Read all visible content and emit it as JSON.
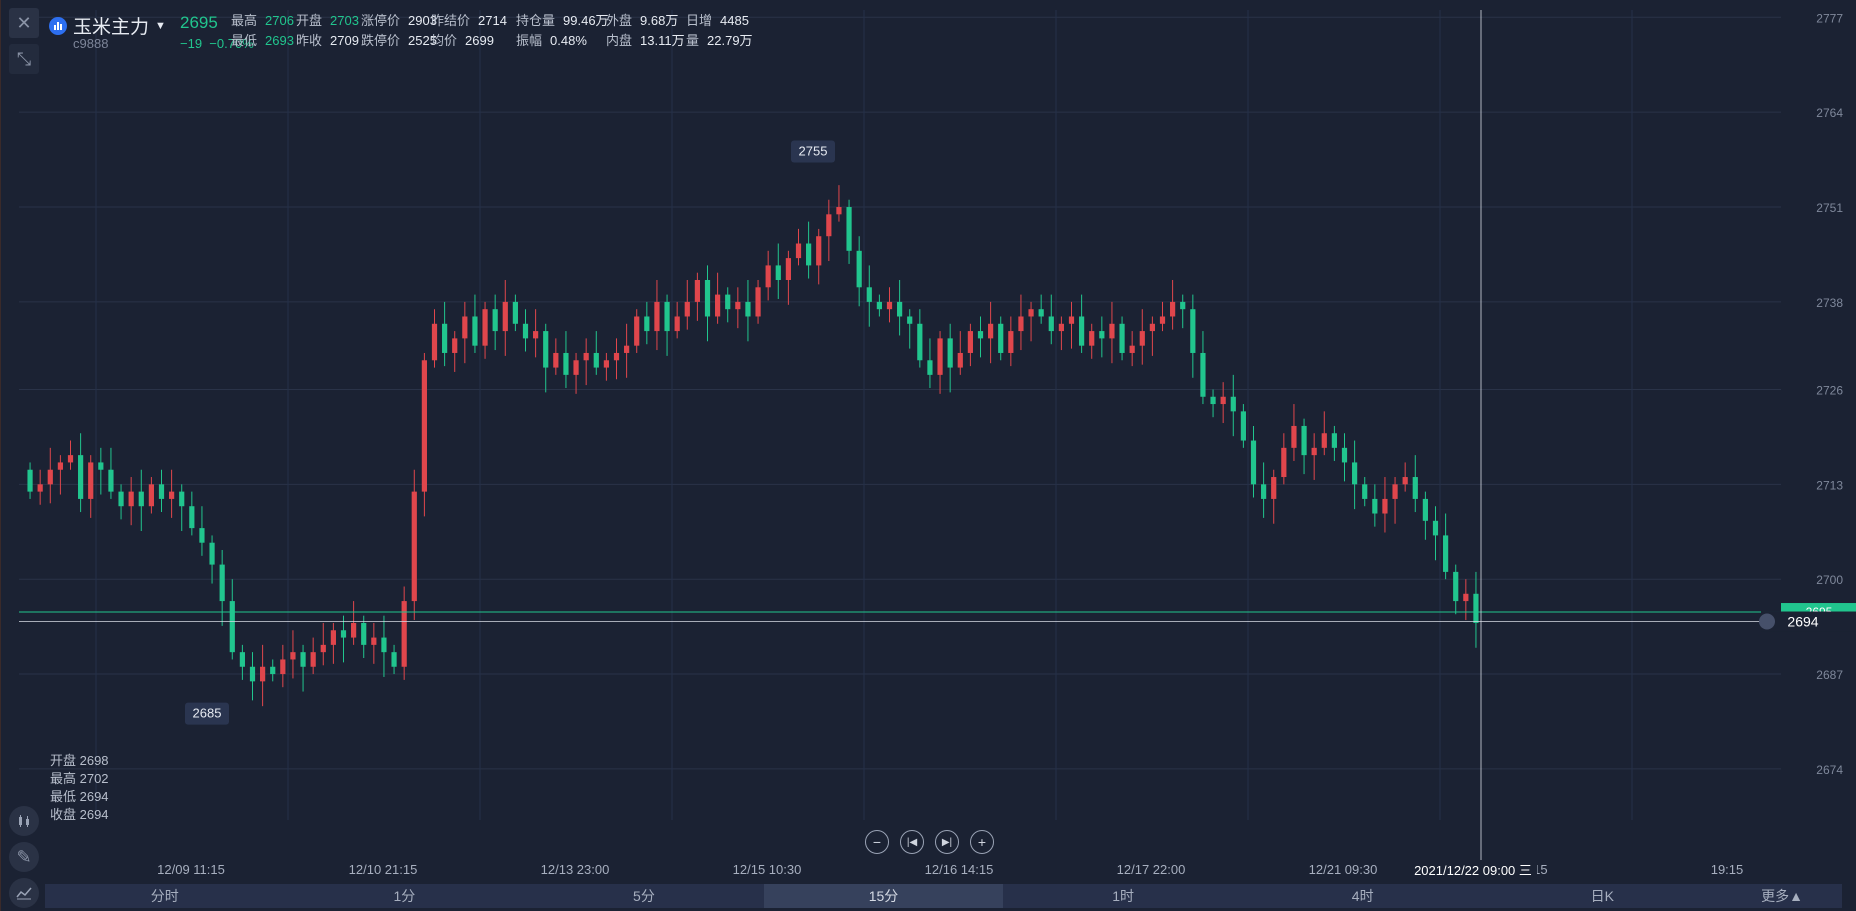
{
  "header": {
    "name": "玉米主力",
    "code": "c9888",
    "price": "2695",
    "change": "−19",
    "change_pct": "−0.70%",
    "row1": [
      {
        "k": "最高",
        "v": "2706",
        "green": true
      },
      {
        "k": "开盘",
        "v": "2703",
        "green": true
      },
      {
        "k": "涨停价",
        "v": "2903"
      },
      {
        "k": "昨结价",
        "v": "2714"
      },
      {
        "k": "持仓量",
        "v": "99.46万"
      },
      {
        "k": "外盘",
        "v": "9.68万"
      },
      {
        "k": "日增",
        "v": "4485"
      }
    ],
    "row2": [
      {
        "k": "最低",
        "v": "2693",
        "green": true
      },
      {
        "k": "昨收",
        "v": "2709"
      },
      {
        "k": "跌停价",
        "v": "2525"
      },
      {
        "k": "均价",
        "v": "2699"
      },
      {
        "k": "振幅",
        "v": "0.48%"
      },
      {
        "k": "内盘",
        "v": "13.11万"
      },
      {
        "k": "量",
        "v": "22.79万"
      }
    ]
  },
  "chart_data": {
    "type": "candlestick",
    "ylim": [
      2667,
      2778
    ],
    "y_ticks": [
      "2777",
      "2764",
      "2751",
      "2738",
      "2726",
      "2713",
      "2700",
      "2687",
      "2674"
    ],
    "x_ticks": [
      "12/09 11:15",
      "12/10 21:15",
      "12/13 23:00",
      "12/15 10:30",
      "12/16 14:15",
      "12/17 22:00",
      "12/21 09:30",
      "1:15",
      "19:15"
    ],
    "high_marker": "2755",
    "low_marker": "2685",
    "current_price_label": "2695",
    "crosshair_price": "2694",
    "crosshair_time": "2021/12/22 09:00 三",
    "closes": [
      2712,
      2713,
      2715,
      2716,
      2717,
      2711,
      2716,
      2715,
      2712,
      2710,
      2712,
      2710,
      2713,
      2711,
      2712,
      2710,
      2707,
      2705,
      2702,
      2697,
      2690,
      2688,
      2686,
      2688,
      2687,
      2689,
      2690,
      2688,
      2690,
      2691,
      2693,
      2692,
      2694,
      2691,
      2692,
      2690,
      2688,
      2697,
      2712,
      2730,
      2735,
      2731,
      2733,
      2736,
      2732,
      2737,
      2734,
      2738,
      2735,
      2733,
      2734,
      2729,
      2731,
      2728,
      2730,
      2731,
      2729,
      2730,
      2731,
      2732,
      2736,
      2734,
      2738,
      2734,
      2736,
      2738,
      2741,
      2736,
      2739,
      2737,
      2738,
      2736,
      2740,
      2743,
      2741,
      2744,
      2746,
      2743,
      2747,
      2750,
      2751,
      2745,
      2740,
      2738,
      2737,
      2738,
      2736,
      2735,
      2730,
      2728,
      2733,
      2729,
      2731,
      2734,
      2733,
      2735,
      2731,
      2734,
      2736,
      2737,
      2736,
      2734,
      2735,
      2736,
      2732,
      2734,
      2733,
      2735,
      2731,
      2732,
      2734,
      2735,
      2736,
      2738,
      2737,
      2731,
      2725,
      2724,
      2725,
      2723,
      2719,
      2713,
      2711,
      2714,
      2718,
      2721,
      2717,
      2718,
      2720,
      2718,
      2716,
      2713,
      2711,
      2709,
      2711,
      2713,
      2714,
      2711,
      2708,
      2706,
      2701,
      2697,
      2698,
      2694
    ],
    "series": [
      {
        "name": "玉米主力",
        "values": [
          2698,
          2702,
          2694,
          2694
        ]
      }
    ]
  },
  "ohlc_panel": {
    "open": "开盘 2698",
    "high": "最高 2702",
    "low": "最低 2694",
    "close": "收盘 2694"
  },
  "nav": {
    "zoom_out": "−",
    "first": "|◀",
    "last": "▶|",
    "zoom_in": "+"
  },
  "periods": [
    "分时",
    "1分",
    "5分",
    "15分",
    "1时",
    "4时",
    "日K",
    "更多▲"
  ],
  "active_period": 3,
  "colors": {
    "up": "#e0464c",
    "down": "#21c58e",
    "bg": "#1b2233",
    "grid": "#2a3348"
  }
}
